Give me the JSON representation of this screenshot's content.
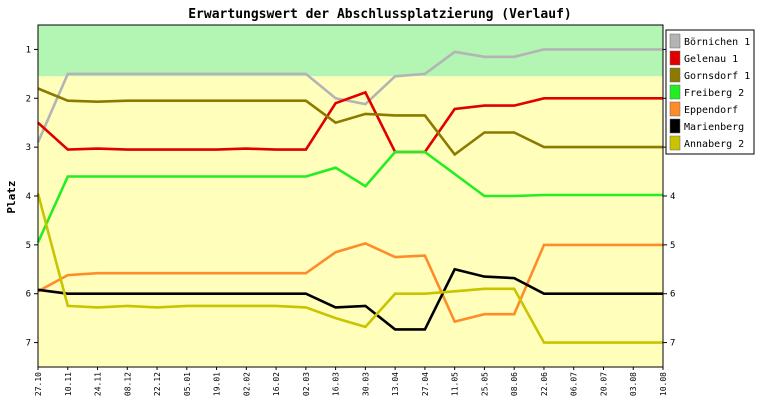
{
  "chart_data": {
    "type": "line",
    "title": "Erwartungswert der Abschlussplatzierung (Verlauf)",
    "ylabel": "Platz",
    "xlabel": "",
    "ylim": [
      0.5,
      7.5
    ],
    "y_inverted": true,
    "yticks": [
      "1",
      "2",
      "3",
      "4",
      "5",
      "6",
      "7"
    ],
    "categories": [
      "27.10",
      "10.11",
      "24.11",
      "08.12",
      "22.12",
      "05.01",
      "19.01",
      "02.02",
      "16.02",
      "02.03",
      "16.03",
      "30.03",
      "13.04",
      "27.04",
      "11.05",
      "25.05",
      "08.06",
      "22.06",
      "06.07",
      "20.07",
      "03.08",
      "10.08"
    ],
    "bands": [
      {
        "from": 0.5,
        "to": 1.55,
        "color": "#b3f5b3"
      },
      {
        "from": 1.55,
        "to": 7.5,
        "color": "#ffffbb"
      }
    ],
    "grid": false,
    "legend_position": "right",
    "series": [
      {
        "name": "Börnichen 1",
        "color": "#b4b4b4",
        "values": [
          2.9,
          1.5,
          1.5,
          1.5,
          1.5,
          1.5,
          1.5,
          1.5,
          1.5,
          1.5,
          2.0,
          2.12,
          1.55,
          1.5,
          1.05,
          1.15,
          1.15,
          1.0,
          1.0,
          1.0,
          1.0,
          1.0
        ]
      },
      {
        "name": "Gelenau 1",
        "color": "#e00000",
        "values": [
          2.5,
          3.05,
          3.03,
          3.05,
          3.05,
          3.05,
          3.05,
          3.03,
          3.05,
          3.05,
          2.1,
          1.88,
          3.1,
          3.1,
          2.22,
          2.15,
          2.15,
          2.0,
          2.0,
          2.0,
          2.0,
          2.0
        ]
      },
      {
        "name": "Gornsdorf 1",
        "color": "#8c7a00",
        "values": [
          1.8,
          2.05,
          2.07,
          2.05,
          2.05,
          2.05,
          2.05,
          2.05,
          2.05,
          2.05,
          2.5,
          2.32,
          2.35,
          2.35,
          3.15,
          2.7,
          2.7,
          3.0,
          3.0,
          3.0,
          3.0,
          3.0
        ]
      },
      {
        "name": "Freiberg 2",
        "color": "#22ee22",
        "values": [
          4.95,
          3.6,
          3.6,
          3.6,
          3.6,
          3.6,
          3.6,
          3.6,
          3.6,
          3.6,
          3.42,
          3.8,
          3.1,
          3.1,
          3.55,
          4.0,
          4.0,
          3.98,
          3.98,
          3.98,
          3.98,
          3.98
        ]
      },
      {
        "name": "Eppendorf",
        "color": "#ff8c2a",
        "values": [
          5.95,
          5.62,
          5.58,
          5.58,
          5.58,
          5.58,
          5.58,
          5.58,
          5.58,
          5.58,
          5.15,
          4.97,
          5.25,
          5.22,
          6.57,
          6.42,
          6.42,
          5.0,
          5.0,
          5.0,
          5.0,
          5.0
        ]
      },
      {
        "name": "Marienberg",
        "color": "#000000",
        "values": [
          5.92,
          6.0,
          6.0,
          6.0,
          6.0,
          6.0,
          6.0,
          6.0,
          6.0,
          6.0,
          6.28,
          6.25,
          6.73,
          6.73,
          5.5,
          5.65,
          5.68,
          6.0,
          6.0,
          6.0,
          6.0,
          6.0
        ]
      },
      {
        "name": "Annaberg 2",
        "color": "#c8c400",
        "values": [
          3.95,
          6.25,
          6.28,
          6.25,
          6.28,
          6.25,
          6.25,
          6.25,
          6.25,
          6.28,
          6.5,
          6.68,
          6.0,
          6.0,
          5.95,
          5.9,
          5.9,
          7.0,
          7.0,
          7.0,
          7.0,
          7.0
        ]
      }
    ]
  }
}
